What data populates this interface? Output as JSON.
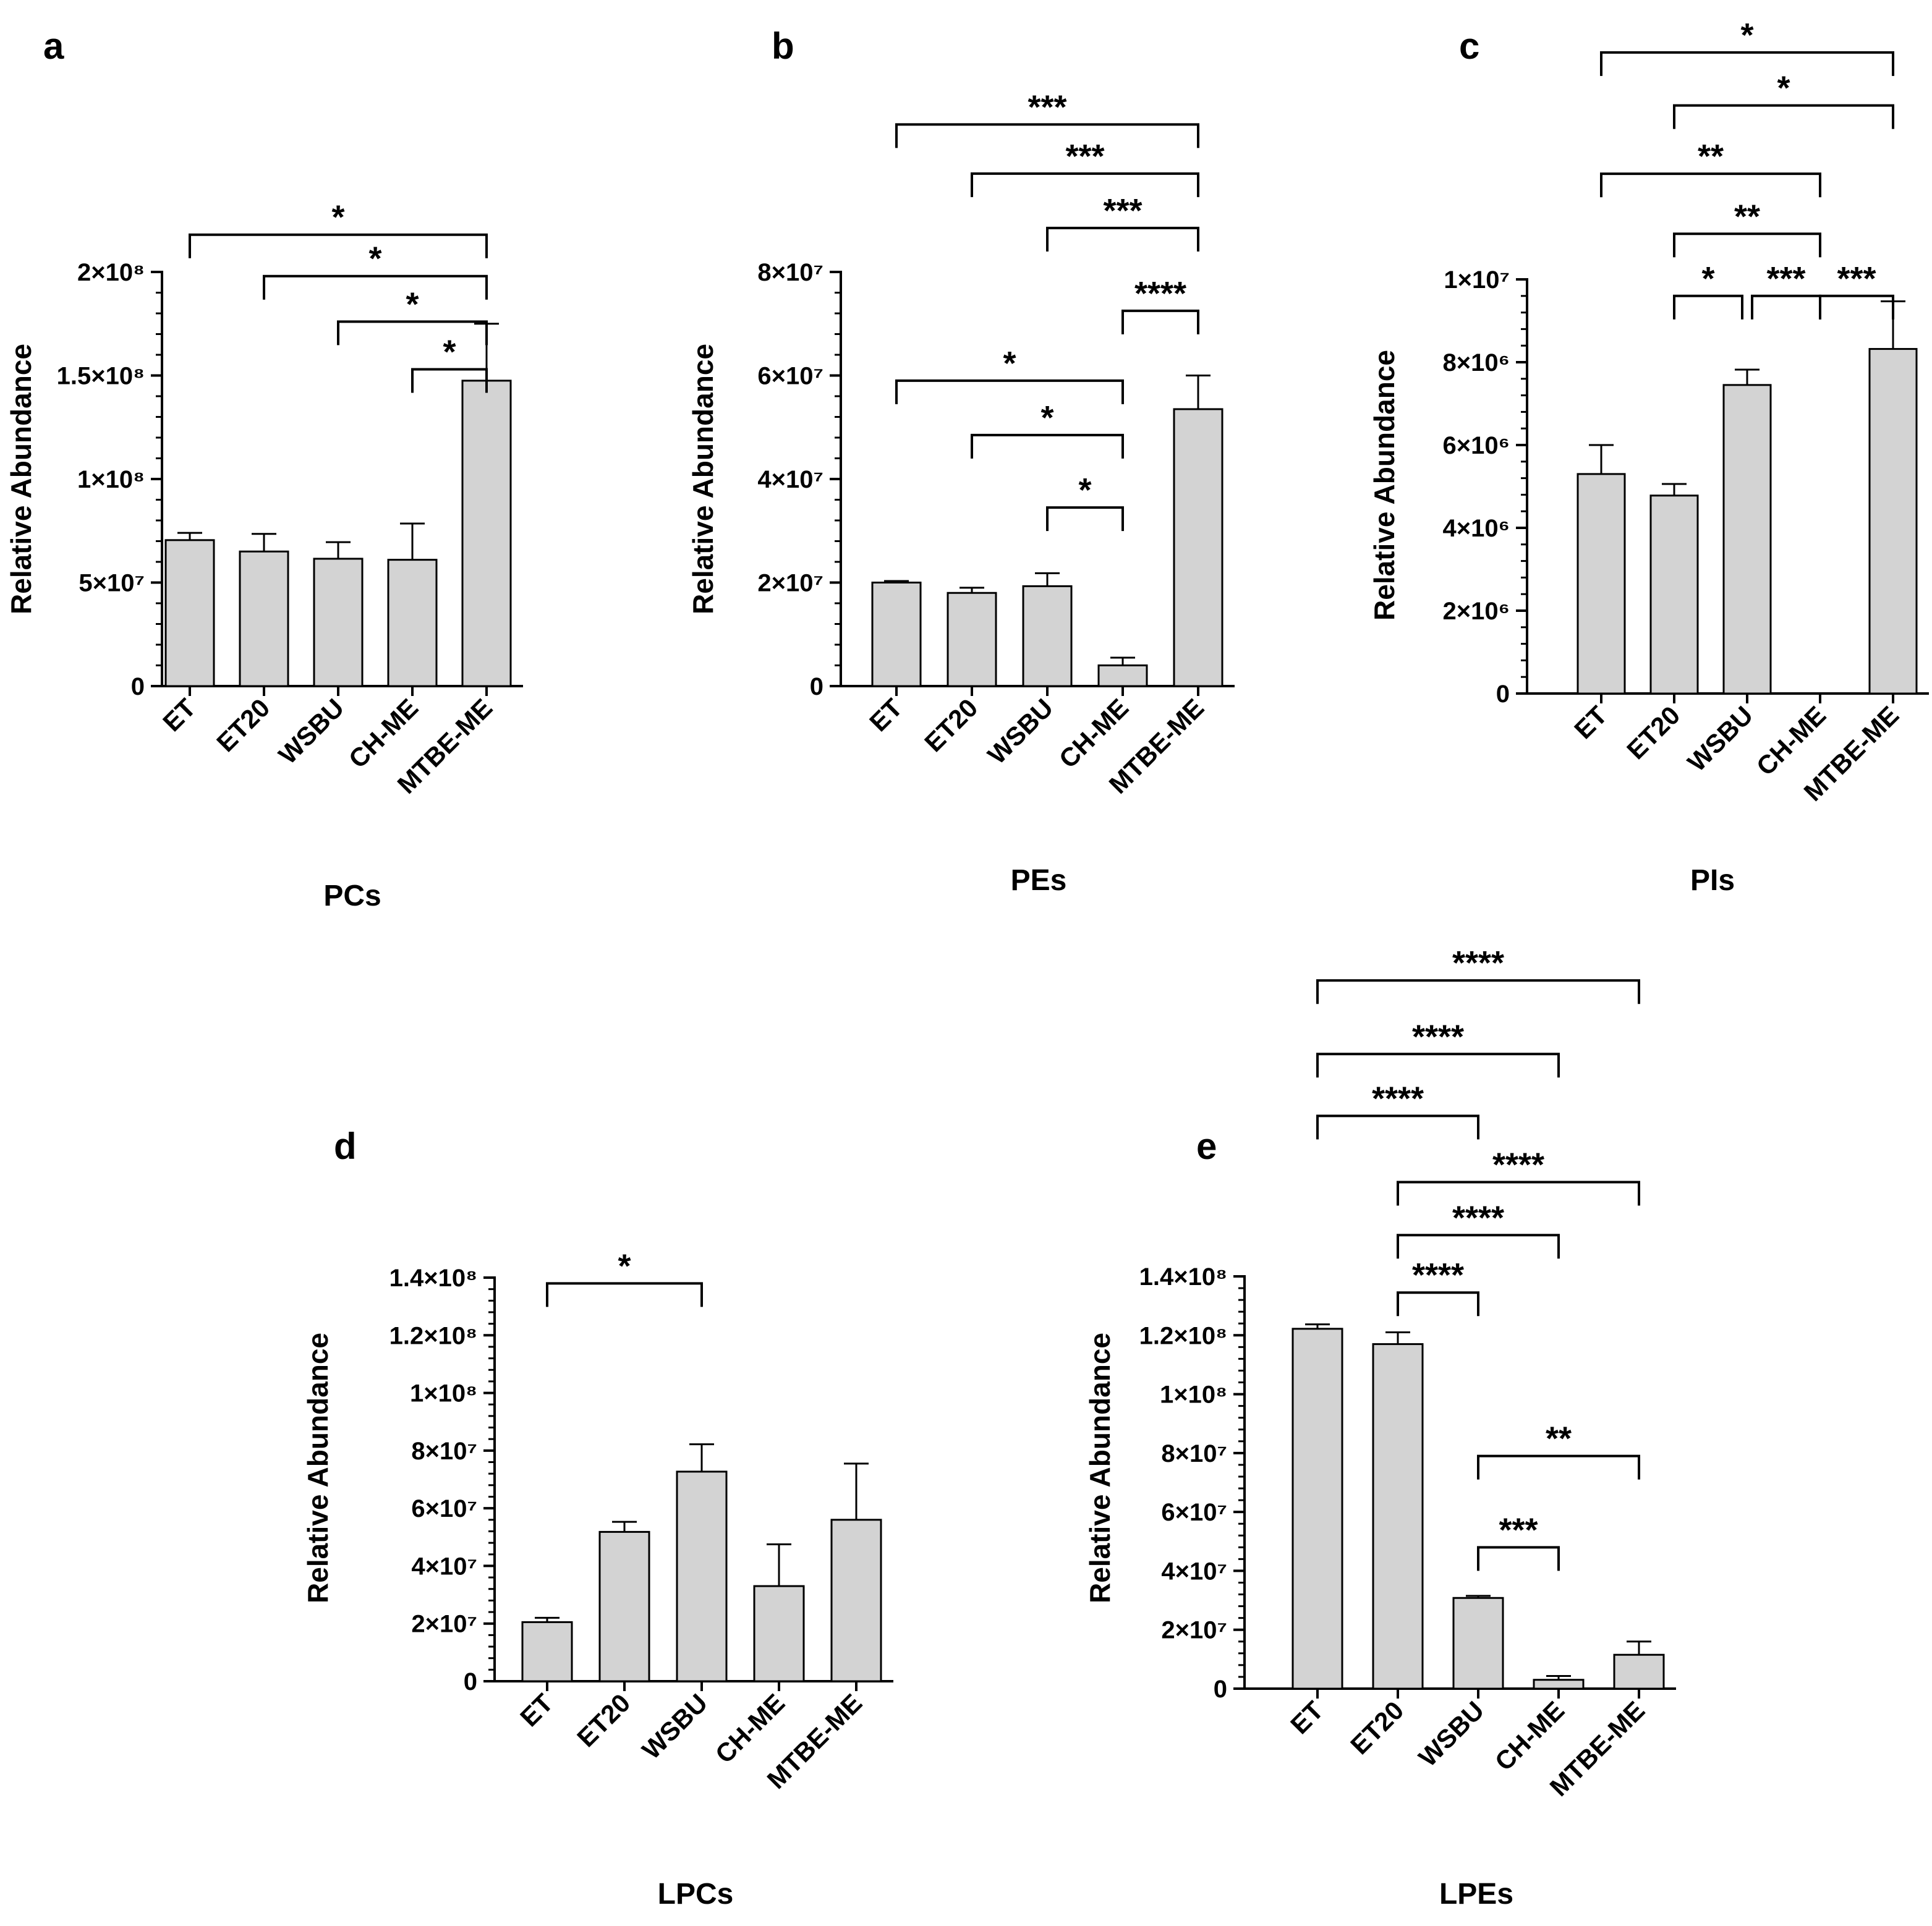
{
  "figure": {
    "background": "#ffffff",
    "bar_fill": "#d3d3d3",
    "line_color": "#000000"
  },
  "chart_data": [
    {
      "id": "a",
      "letter": "a",
      "type": "bar",
      "title": "PCs",
      "ylabel": "Relative Abundance",
      "categories": [
        "ET",
        "ET20",
        "WSBU",
        "CH-ME",
        "MTBE-ME"
      ],
      "values": [
        70500000,
        65000000,
        61500000,
        61000000,
        147500000
      ],
      "errors": [
        3500000,
        8500000,
        8000000,
        17500000,
        27500000
      ],
      "ylim": [
        0,
        200000000
      ],
      "yticks": [
        0,
        50000000,
        100000000,
        150000000,
        200000000
      ],
      "ytick_labels": [
        "0",
        "5×10⁷",
        "1×10⁸",
        "1.5×10⁸",
        "2×10⁸"
      ],
      "comparisons": [
        {
          "a": 0,
          "b": 4,
          "y": 218000000,
          "stars": "*"
        },
        {
          "a": 1,
          "b": 4,
          "y": 198000000,
          "stars": "*"
        },
        {
          "a": 2,
          "b": 4,
          "y": 176000000,
          "stars": "*"
        },
        {
          "a": 3,
          "b": 4,
          "y": 153000000,
          "stars": "*"
        }
      ]
    },
    {
      "id": "b",
      "letter": "b",
      "type": "bar",
      "title": "PEs",
      "ylabel": "Relative Abundance",
      "categories": [
        "ET",
        "ET20",
        "WSBU",
        "CH-ME",
        "MTBE-ME"
      ],
      "values": [
        20000000,
        18000000,
        19300000,
        4000000,
        53500000
      ],
      "errors": [
        300000,
        1000000,
        2500000,
        1500000,
        6500000
      ],
      "ylim": [
        0,
        80000000
      ],
      "yticks": [
        0,
        20000000,
        40000000,
        60000000,
        80000000
      ],
      "ytick_labels": [
        "0",
        "2×10⁷",
        "4×10⁷",
        "6×10⁷",
        "8×10⁷"
      ],
      "comparisons": [
        {
          "a": 0,
          "b": 4,
          "y": 108500000,
          "stars": "***"
        },
        {
          "a": 1,
          "b": 4,
          "y": 99000000,
          "stars": "***"
        },
        {
          "a": 2,
          "b": 4,
          "y": 88500000,
          "stars": "***"
        },
        {
          "a": 3,
          "b": 4,
          "y": 72500000,
          "stars": "****"
        },
        {
          "a": 0,
          "b": 3,
          "y": 59000000,
          "stars": "*"
        },
        {
          "a": 1,
          "b": 3,
          "y": 48500000,
          "stars": "*"
        },
        {
          "a": 2,
          "b": 3,
          "y": 34500000,
          "stars": "*"
        }
      ]
    },
    {
      "id": "c",
      "letter": "c",
      "type": "bar",
      "title": "PIs",
      "ylabel": "Relative Abundance",
      "categories": [
        "ET",
        "ET20",
        "WSBU",
        "CH-ME",
        "MTBE-ME"
      ],
      "values": [
        5300000,
        4780000,
        7450000,
        0,
        8320000
      ],
      "errors": [
        700000,
        280000,
        370000,
        0,
        1150000
      ],
      "ylim": [
        0,
        10000000
      ],
      "yticks": [
        0,
        2000000,
        4000000,
        6000000,
        8000000,
        10000000
      ],
      "ytick_labels": [
        "0",
        "2×10⁶",
        "4×10⁶",
        "6×10⁶",
        "8×10⁶",
        "1×10⁷"
      ],
      "comparisons": [
        {
          "a": 0,
          "b": 4,
          "y": 15480000,
          "stars": "*"
        },
        {
          "a": 1,
          "b": 4,
          "y": 14200000,
          "stars": "*"
        },
        {
          "a": 0,
          "b": 3,
          "y": 12550000,
          "stars": "**"
        },
        {
          "a": 1,
          "b": 3,
          "y": 11100000,
          "stars": "**"
        },
        {
          "a": 1,
          "b": 2,
          "y": 9600000,
          "stars": "*"
        },
        {
          "a": 2,
          "b": 3,
          "y": 9600000,
          "stars": "***"
        },
        {
          "a": 3,
          "b": 4,
          "y": 9600000,
          "stars": "***"
        }
      ]
    },
    {
      "id": "d",
      "letter": "d",
      "type": "bar",
      "title": "LPCs",
      "ylabel": "Relative Abundance",
      "categories": [
        "ET",
        "ET20",
        "WSBU",
        "CH-ME",
        "MTBE-ME"
      ],
      "values": [
        20500000,
        51800000,
        72700000,
        33000000,
        56000000
      ],
      "errors": [
        1500000,
        3500000,
        9500000,
        14500000,
        19500000
      ],
      "ylim": [
        0,
        140000000
      ],
      "yticks": [
        0,
        20000000,
        40000000,
        60000000,
        80000000,
        100000000,
        120000000,
        140000000
      ],
      "ytick_labels": [
        "0",
        "2×10⁷",
        "4×10⁷",
        "6×10⁷",
        "8×10⁷",
        "1×10⁸",
        "1.2×10⁸",
        "1.4×10⁸"
      ],
      "comparisons": [
        {
          "a": 0,
          "b": 2,
          "y": 138000000,
          "stars": "*"
        }
      ]
    },
    {
      "id": "e",
      "letter": "e",
      "type": "bar",
      "title": "LPEs",
      "ylabel": "Relative Abundance",
      "categories": [
        "ET",
        "ET20",
        "WSBU",
        "CH-ME",
        "MTBE-ME"
      ],
      "values": [
        122200000,
        117000000,
        30800000,
        3000000,
        11500000
      ],
      "errors": [
        1500000,
        4000000,
        700000,
        1300000,
        4500000
      ],
      "ylim": [
        0,
        140000000
      ],
      "yticks": [
        0,
        20000000,
        40000000,
        60000000,
        80000000,
        100000000,
        120000000,
        140000000
      ],
      "ytick_labels": [
        "0",
        "2×10⁷",
        "4×10⁷",
        "6×10⁷",
        "8×10⁷",
        "1×10⁸",
        "1.2×10⁸",
        "1.4×10⁸"
      ],
      "comparisons": [
        {
          "a": 0,
          "b": 4,
          "y": 240500000,
          "stars": "****"
        },
        {
          "a": 0,
          "b": 3,
          "y": 215500000,
          "stars": "****"
        },
        {
          "a": 0,
          "b": 2,
          "y": 194500000,
          "stars": "****"
        },
        {
          "a": 1,
          "b": 4,
          "y": 172000000,
          "stars": "****"
        },
        {
          "a": 1,
          "b": 3,
          "y": 154000000,
          "stars": "****"
        },
        {
          "a": 1,
          "b": 2,
          "y": 134500000,
          "stars": "****"
        },
        {
          "a": 2,
          "b": 4,
          "y": 79000000,
          "stars": "**"
        },
        {
          "a": 2,
          "b": 3,
          "y": 48000000,
          "stars": "***"
        }
      ]
    }
  ]
}
